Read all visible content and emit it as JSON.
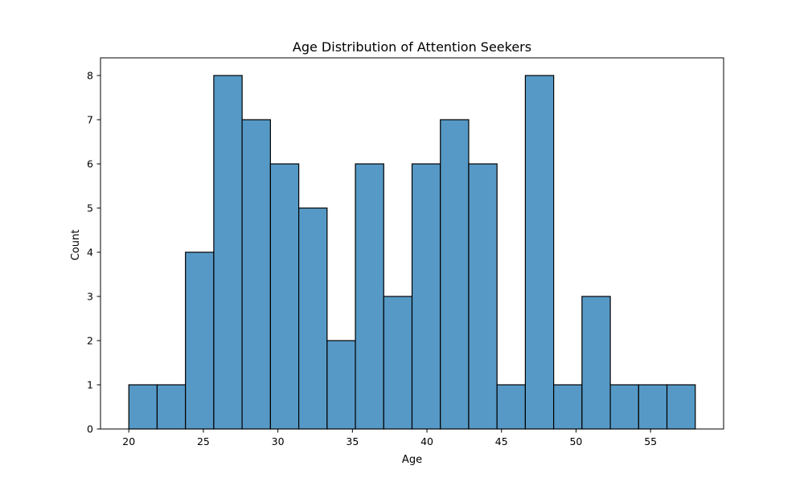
{
  "chart_data": {
    "type": "bar",
    "subtype": "histogram",
    "title": "Age Distribution of Attention Seekers",
    "xlabel": "Age",
    "ylabel": "Count",
    "bin_start": 20,
    "bin_end": 58,
    "bin_count": 20,
    "counts": [
      1,
      1,
      4,
      8,
      7,
      6,
      5,
      2,
      6,
      3,
      6,
      7,
      6,
      1,
      8,
      1,
      3,
      1,
      1,
      1
    ],
    "xlim": [
      18.1,
      59.9
    ],
    "ylim": [
      0,
      8.4
    ],
    "xticks": [
      20,
      25,
      30,
      35,
      40,
      45,
      50,
      55
    ],
    "yticks": [
      0,
      1,
      2,
      3,
      4,
      5,
      6,
      7,
      8
    ],
    "grid": false,
    "legend": null,
    "bar_color": "#5699c6",
    "edge_color": "#000000"
  }
}
